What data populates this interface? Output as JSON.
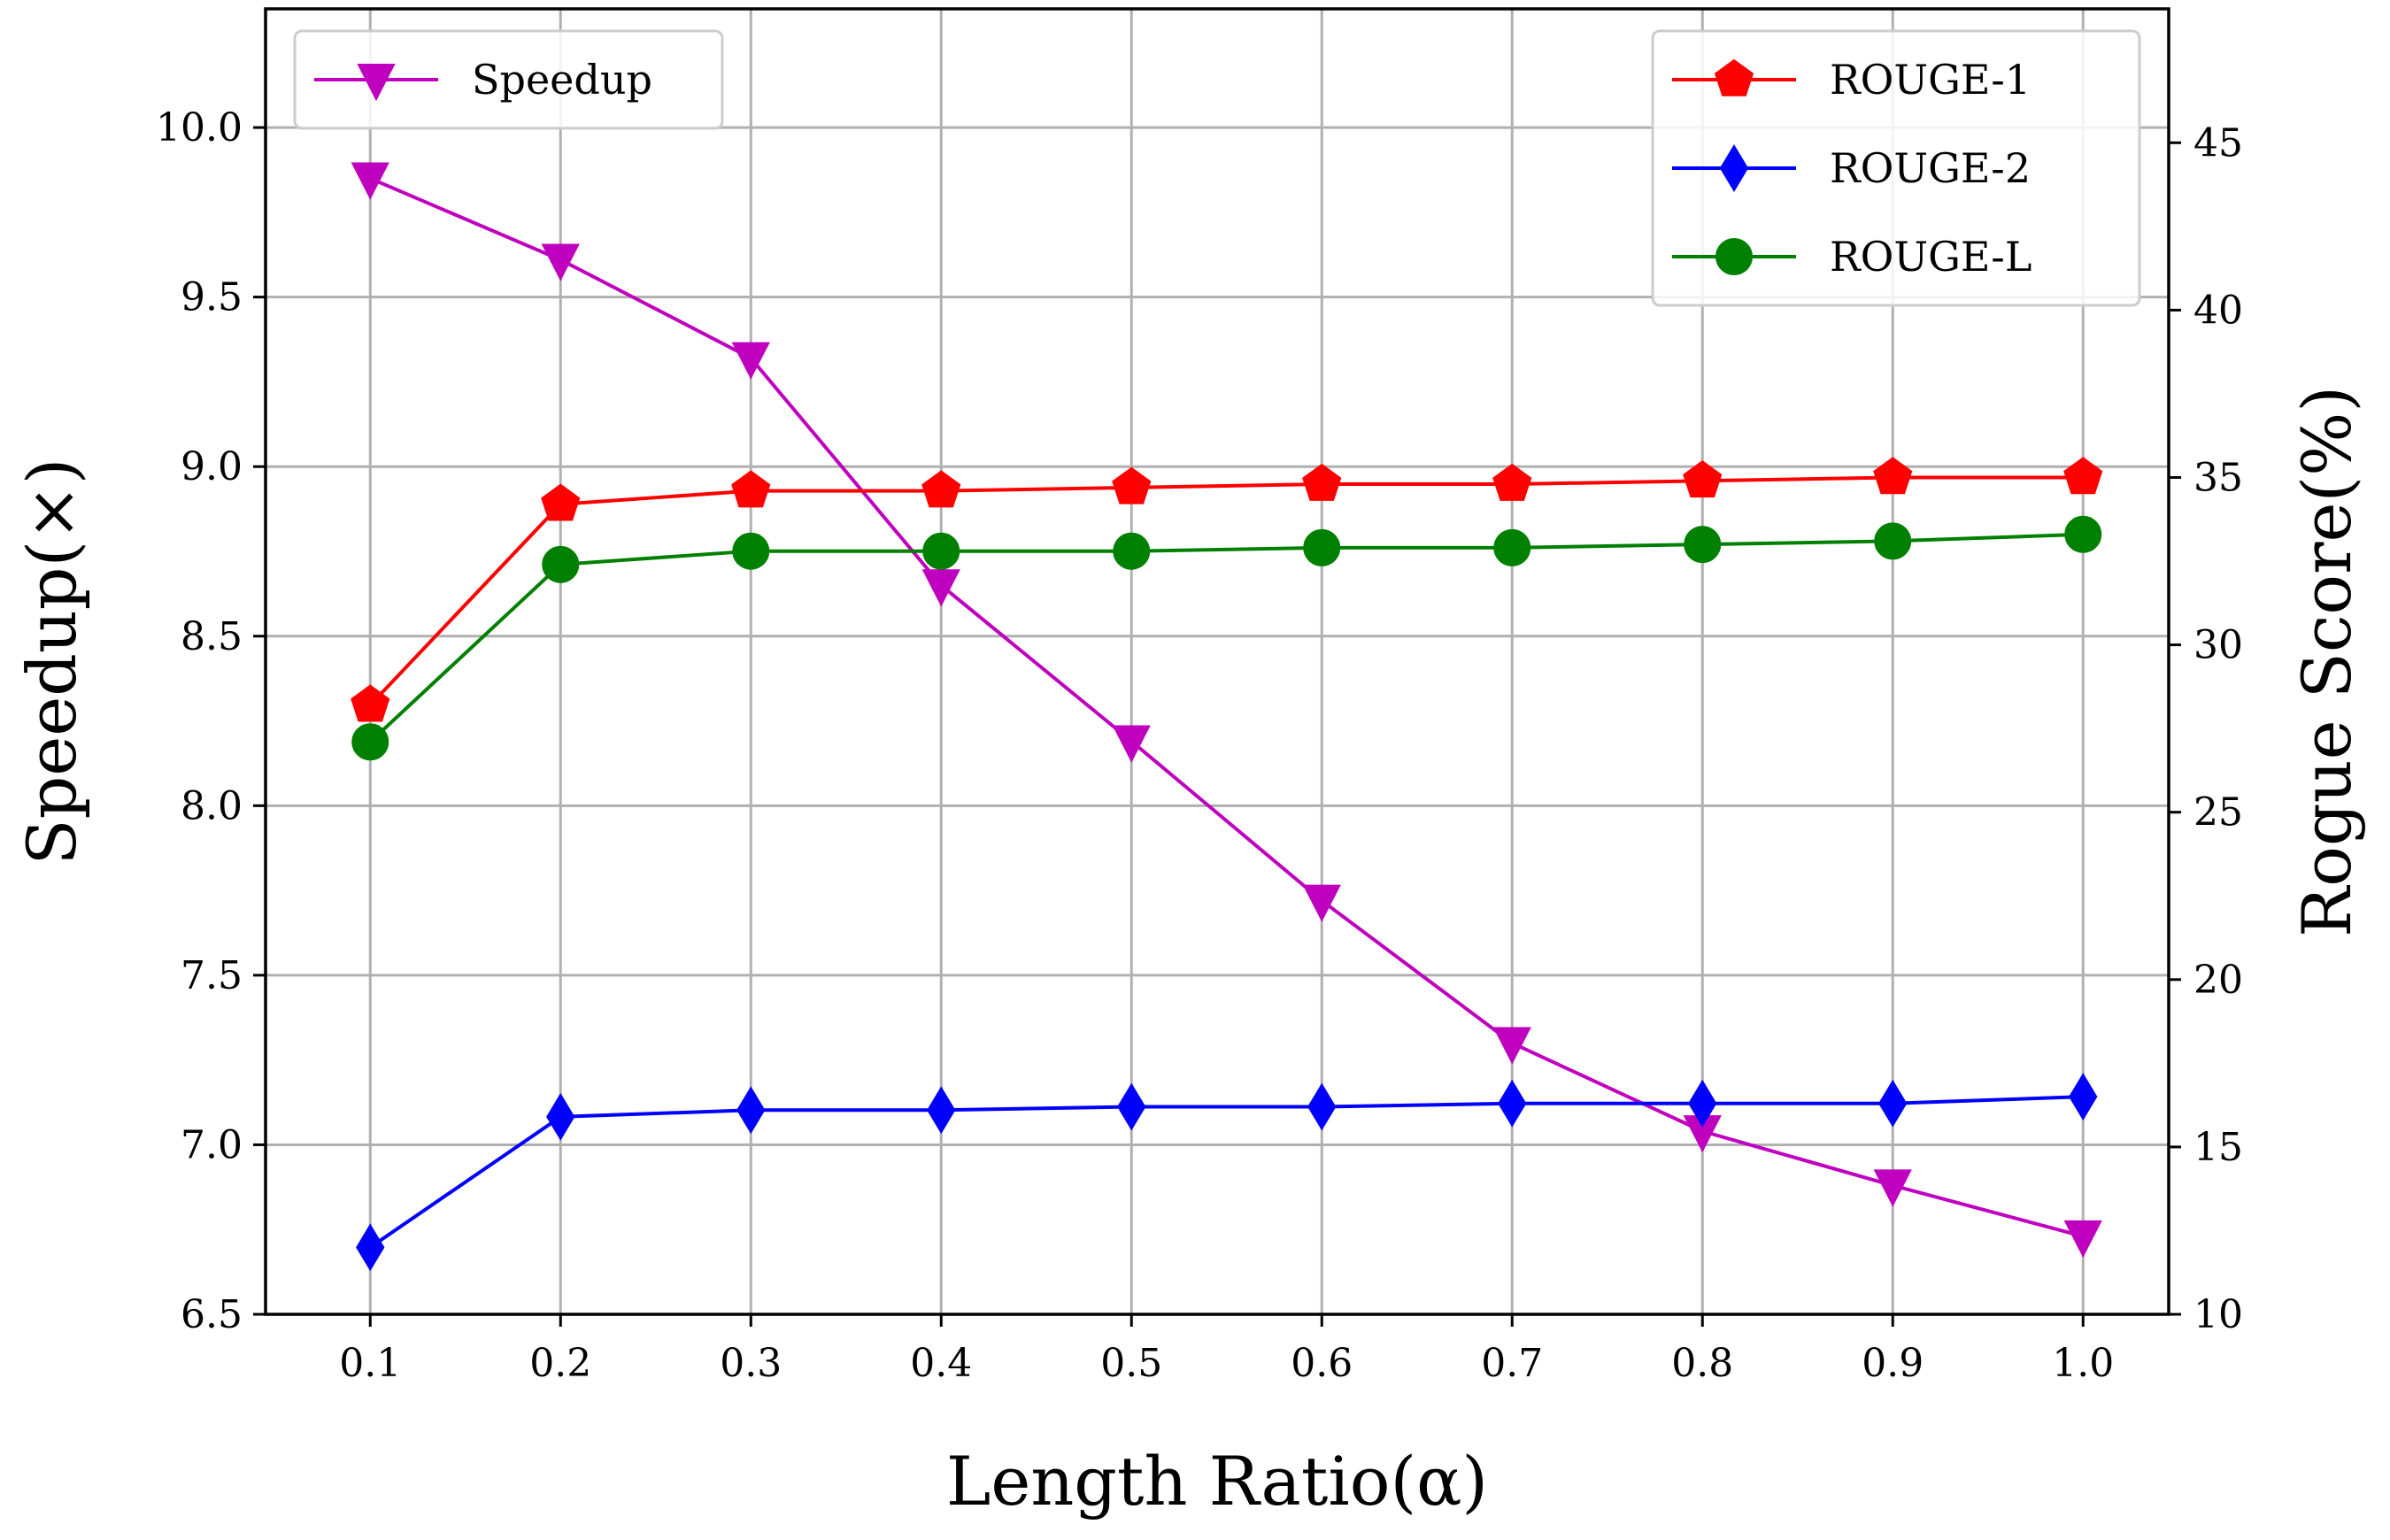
{
  "chart_data": {
    "type": "line",
    "title": "",
    "xlabel": "Length Ratio(α)",
    "ylabel_left": "Speedup(×)",
    "ylabel_right": "Rogue Score(%)",
    "x": [
      0.1,
      0.2,
      0.3,
      0.4,
      0.5,
      0.6,
      0.7,
      0.8,
      0.9,
      1.0
    ],
    "x_tick_labels": [
      "0.1",
      "0.2",
      "0.3",
      "0.4",
      "0.5",
      "0.6",
      "0.7",
      "0.8",
      "0.9",
      "1.0"
    ],
    "xlim": [
      0.045,
      1.045
    ],
    "ylim_left": [
      6.5,
      10.35
    ],
    "ylim_right": [
      10,
      49
    ],
    "y_ticks_left": [
      "6.5",
      "7.0",
      "7.5",
      "8.0",
      "8.5",
      "9.0",
      "9.5",
      "10.0"
    ],
    "y_ticks_right": [
      "10",
      "15",
      "20",
      "25",
      "30",
      "35",
      "40",
      "45"
    ],
    "grid": true,
    "series": [
      {
        "name": "Speedup",
        "axis": "left",
        "color": "#bf00bf",
        "marker": "triangle-down",
        "legend": "top-left",
        "values": [
          9.85,
          9.61,
          9.32,
          8.65,
          8.19,
          7.72,
          7.3,
          7.04,
          6.88,
          6.73
        ]
      },
      {
        "name": "ROUGE-1",
        "axis": "right",
        "color": "#ff0000",
        "marker": "pentagon",
        "legend": "top-right",
        "values": [
          28.2,
          34.2,
          34.6,
          34.6,
          34.7,
          34.8,
          34.8,
          34.9,
          35.0,
          35.0
        ]
      },
      {
        "name": "ROUGE-2",
        "axis": "right",
        "color": "#0000ff",
        "marker": "diamond",
        "legend": "top-right",
        "values": [
          12.0,
          15.9,
          16.1,
          16.1,
          16.2,
          16.2,
          16.3,
          16.3,
          16.3,
          16.5
        ]
      },
      {
        "name": "ROUGE-L",
        "axis": "right",
        "color": "#008000",
        "marker": "circle",
        "legend": "top-right",
        "values": [
          27.1,
          32.4,
          32.8,
          32.8,
          32.8,
          32.9,
          32.9,
          33.0,
          33.1,
          33.3
        ]
      }
    ]
  }
}
